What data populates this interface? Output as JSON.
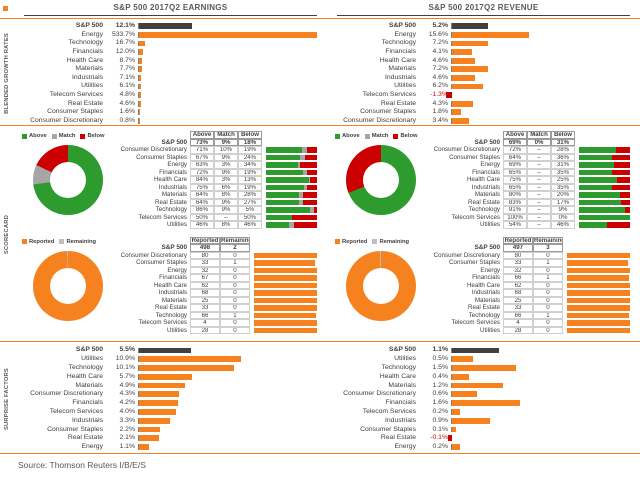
{
  "titles": [
    "S&P 500 2017Q2 EARNINGS",
    "S&P 500 2017Q2 REVENUE"
  ],
  "section_labels": [
    "BLENDED GROWTH RATES",
    "SCORECARD",
    "SURPRISE FACTORS"
  ],
  "source": "Source: Thomson Reuters I/B/E/S",
  "colors": {
    "orange": "#F5821F",
    "dark": "#404040",
    "green": "#2E9B2E",
    "red": "#CC0000",
    "match_gray": "#A6A6A6",
    "remaining_gray": "#BFBFBF"
  },
  "legends": {
    "scorecard": [
      "Above",
      "Match",
      "Below"
    ],
    "reported": [
      "Reported",
      "Remaining"
    ]
  },
  "chart_data": [
    {
      "type": "bar",
      "name": "earnings-blended-growth",
      "unit": "%",
      "xmax": 533.7,
      "sp_pct": 30,
      "categories": [
        "S&P 500",
        "Energy",
        "Technology",
        "Financials",
        "Health Care",
        "Materials",
        "Industrials",
        "Utilities",
        "Telecom Services",
        "Real Estate",
        "Consumer Staples",
        "Consumer Discretionary"
      ],
      "values": [
        12.1,
        533.7,
        16.7,
        12.0,
        8.7,
        7.7,
        7.1,
        6.1,
        4.8,
        4.6,
        1.6,
        0.8
      ],
      "labels": [
        "12.1%",
        "533.7%",
        "16.7%",
        "12.0%",
        "8.7%",
        "7.7%",
        "7.1%",
        "6.1%",
        "4.8%",
        "4.6%",
        "1.6%",
        "0.8%"
      ]
    },
    {
      "type": "bar",
      "name": "revenue-blended-growth",
      "unit": "%",
      "xmax": 36,
      "sp_pct": 20,
      "categories": [
        "S&P 500",
        "Energy",
        "Technology",
        "Financials",
        "Health Care",
        "Materials",
        "Industrials",
        "Utilities",
        "Telecom Services",
        "Real Estate",
        "Consumer Staples",
        "Consumer Discretionary"
      ],
      "values": [
        5.2,
        15.6,
        7.2,
        4.1,
        4.6,
        7.2,
        4.6,
        6.2,
        -1.3,
        4.3,
        1.8,
        3.4
      ],
      "labels": [
        "5.2%",
        "15.6%",
        "7.2%",
        "4.1%",
        "4.6%",
        "7.2%",
        "4.6%",
        "6.2%",
        "-1.3%",
        "4.3%",
        "1.8%",
        "3.4%"
      ]
    },
    {
      "type": "table",
      "name": "earnings-scorecard",
      "col_headers": [
        "Above",
        "Match",
        "Below"
      ],
      "stack_colors": [
        "green",
        "match_gray",
        "red"
      ],
      "sp_row": {
        "label": "S&P 500",
        "values": [
          "73%",
          "9%",
          "18%"
        ]
      },
      "rows": [
        {
          "label": "Consumer Discretionary",
          "values": [
            "71%",
            "10%",
            "19%"
          ]
        },
        {
          "label": "Consumer Staples",
          "values": [
            "67%",
            "9%",
            "24%"
          ]
        },
        {
          "label": "Energy",
          "values": [
            "63%",
            "3%",
            "34%"
          ]
        },
        {
          "label": "Financials",
          "values": [
            "72%",
            "9%",
            "19%"
          ]
        },
        {
          "label": "Health Care",
          "values": [
            "84%",
            "3%",
            "13%"
          ]
        },
        {
          "label": "Industrials",
          "values": [
            "75%",
            "6%",
            "19%"
          ]
        },
        {
          "label": "Materials",
          "values": [
            "64%",
            "8%",
            "28%"
          ]
        },
        {
          "label": "Real Estate",
          "values": [
            "64%",
            "9%",
            "27%"
          ]
        },
        {
          "label": "Technology",
          "values": [
            "86%",
            "9%",
            "5%"
          ]
        },
        {
          "label": "Telecom Services",
          "values": [
            "50%",
            "–",
            "50%"
          ]
        },
        {
          "label": "Utilities",
          "values": [
            "46%",
            "8%",
            "46%"
          ]
        }
      ]
    },
    {
      "type": "table",
      "name": "revenue-scorecard",
      "col_headers": [
        "Above",
        "Match",
        "Below"
      ],
      "stack_colors": [
        "green",
        "match_gray",
        "red"
      ],
      "sp_row": {
        "label": "S&P 500",
        "values": [
          "69%",
          "0%",
          "31%"
        ]
      },
      "rows": [
        {
          "label": "Consumer Discretionary",
          "values": [
            "72%",
            "–",
            "28%"
          ]
        },
        {
          "label": "Consumer Staples",
          "values": [
            "64%",
            "–",
            "36%"
          ]
        },
        {
          "label": "Energy",
          "values": [
            "69%",
            "–",
            "31%"
          ]
        },
        {
          "label": "Financials",
          "values": [
            "65%",
            "–",
            "35%"
          ]
        },
        {
          "label": "Health Care",
          "values": [
            "75%",
            "–",
            "25%"
          ]
        },
        {
          "label": "Industrials",
          "values": [
            "65%",
            "–",
            "35%"
          ]
        },
        {
          "label": "Materials",
          "values": [
            "80%",
            "–",
            "20%"
          ]
        },
        {
          "label": "Real Estate",
          "values": [
            "83%",
            "–",
            "17%"
          ]
        },
        {
          "label": "Technology",
          "values": [
            "91%",
            "–",
            "9%"
          ]
        },
        {
          "label": "Telecom Services",
          "values": [
            "100%",
            "–",
            "0%"
          ]
        },
        {
          "label": "Utilities",
          "values": [
            "54%",
            "–",
            "46%"
          ]
        }
      ]
    },
    {
      "type": "table",
      "name": "earnings-reported",
      "col_headers": [
        "Reported",
        "Remaining"
      ],
      "bar_color": "orange",
      "sp_row": {
        "label": "S&P 500",
        "values": [
          "498",
          "2"
        ]
      },
      "rows": [
        {
          "label": "Consumer Discretionary",
          "values": [
            "80",
            "0"
          ]
        },
        {
          "label": "Consumer Staples",
          "values": [
            "33",
            "1"
          ]
        },
        {
          "label": "Energy",
          "values": [
            "32",
            "0"
          ]
        },
        {
          "label": "Financials",
          "values": [
            "67",
            "0"
          ]
        },
        {
          "label": "Health Care",
          "values": [
            "62",
            "0"
          ]
        },
        {
          "label": "Industrials",
          "values": [
            "68",
            "0"
          ]
        },
        {
          "label": "Materials",
          "values": [
            "25",
            "0"
          ]
        },
        {
          "label": "Real Estate",
          "values": [
            "33",
            "0"
          ]
        },
        {
          "label": "Technology",
          "values": [
            "66",
            "1"
          ]
        },
        {
          "label": "Telecom Services",
          "values": [
            "4",
            "0"
          ]
        },
        {
          "label": "Utilities",
          "values": [
            "28",
            "0"
          ]
        }
      ]
    },
    {
      "type": "table",
      "name": "revenue-reported",
      "col_headers": [
        "Reported",
        "Remaining"
      ],
      "bar_color": "orange",
      "sp_row": {
        "label": "S&P 500",
        "values": [
          "497",
          "3"
        ]
      },
      "rows": [
        {
          "label": "Consumer Discretionary",
          "values": [
            "80",
            "0"
          ]
        },
        {
          "label": "Consumer Staples",
          "values": [
            "33",
            "1"
          ]
        },
        {
          "label": "Energy",
          "values": [
            "32",
            "0"
          ]
        },
        {
          "label": "Financials",
          "values": [
            "66",
            "1"
          ]
        },
        {
          "label": "Health Care",
          "values": [
            "62",
            "0"
          ]
        },
        {
          "label": "Industrials",
          "values": [
            "68",
            "0"
          ]
        },
        {
          "label": "Materials",
          "values": [
            "25",
            "0"
          ]
        },
        {
          "label": "Real Estate",
          "values": [
            "33",
            "0"
          ]
        },
        {
          "label": "Technology",
          "values": [
            "66",
            "1"
          ]
        },
        {
          "label": "Telecom Services",
          "values": [
            "4",
            "0"
          ]
        },
        {
          "label": "Utilities",
          "values": [
            "28",
            "0"
          ]
        }
      ]
    },
    {
      "type": "bar",
      "name": "earnings-surprise-factors",
      "unit": "%",
      "xmax": 19,
      "categories": [
        "S&P 500",
        "Utilities",
        "Technology",
        "Health Care",
        "Materials",
        "Consumer Discretionary",
        "Financials",
        "Telecom Services",
        "Industrials",
        "Consumer Staples",
        "Real Estate",
        "Energy"
      ],
      "values": [
        5.5,
        10.9,
        10.1,
        5.7,
        4.9,
        4.3,
        4.2,
        4.0,
        3.3,
        2.2,
        2.1,
        1.1
      ],
      "labels": [
        "5.5%",
        "10.9%",
        "10.1%",
        "5.7%",
        "4.9%",
        "4.3%",
        "4.2%",
        "4.0%",
        "3.3%",
        "2.2%",
        "2.1%",
        "1.1%"
      ]
    },
    {
      "type": "bar",
      "name": "revenue-surprise-factors",
      "unit": "%",
      "xmax": 4.2,
      "categories": [
        "S&P 500",
        "Utilities",
        "Technology",
        "Health Care",
        "Materials",
        "Consumer Discretionary",
        "Financials",
        "Telecom Services",
        "Industrials",
        "Consumer Staples",
        "Real Estate",
        "Energy"
      ],
      "values": [
        1.1,
        0.5,
        1.5,
        0.4,
        1.2,
        0.6,
        1.6,
        0.2,
        0.9,
        0.1,
        -0.1,
        0.2
      ],
      "labels": [
        "1.1%",
        "0.5%",
        "1.5%",
        "0.4%",
        "1.2%",
        "0.6%",
        "1.6%",
        "0.2%",
        "0.9%",
        "0.1%",
        "-0.1%",
        "0.2%"
      ]
    }
  ]
}
